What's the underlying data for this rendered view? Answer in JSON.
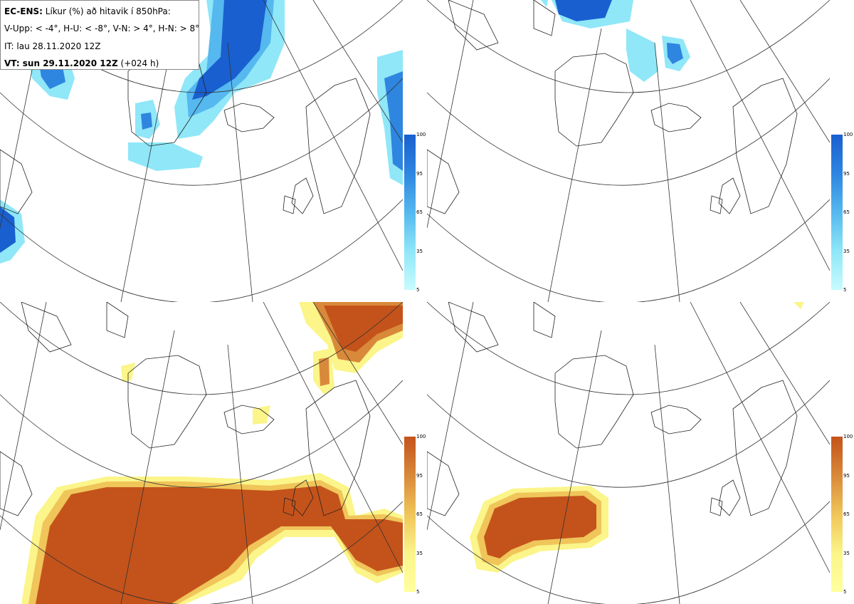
{
  "legend": {
    "title_bold": "EC-ENS:",
    "title_rest": "Líkur (%) að hitavik í 850hPa:",
    "line2": "V-Upp: < -4°, H-U: < -8°, V-N: > 4°, H-N: > 8°",
    "line3": "IT: lau 28.11.2020 12Z",
    "line4_bold": "VT: sun 29.11.2020 12Z",
    "line4_rest": "(+024 h)"
  },
  "colorbar": {
    "ticks": [
      "100",
      "95",
      "65",
      "35",
      "5"
    ],
    "cold_colors": [
      "#1a5fcf",
      "#2e86e0",
      "#55b8ef",
      "#8fe7f8",
      "#c8fbfe"
    ],
    "warm_colors": [
      "#c4531b",
      "#d9893a",
      "#f0c55a",
      "#fbf58a",
      "#ffff9e"
    ]
  },
  "panels": [
    {
      "name": "panel-cold-4",
      "scheme": "cold"
    },
    {
      "name": "panel-cold-8",
      "scheme": "cold"
    },
    {
      "name": "panel-warm-4",
      "scheme": "warm"
    },
    {
      "name": "panel-warm-8",
      "scheme": "warm"
    }
  ]
}
